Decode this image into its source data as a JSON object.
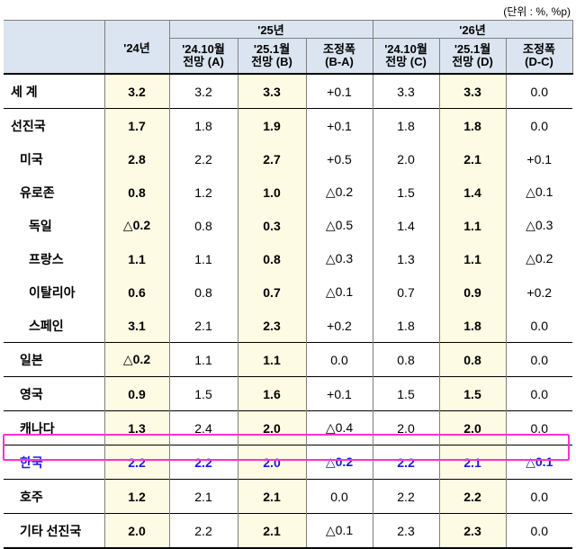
{
  "unit": "(단위 : %, %p)",
  "header": {
    "year24": "'24년",
    "group25": "'25년",
    "group26": "'26년",
    "c25a_1": "'24.10월",
    "c25a_2": "전망 (A)",
    "c25b_1": "'25.1월",
    "c25b_2": "전망 (B)",
    "c25d_1": "조정폭",
    "c25d_2": "(B-A)",
    "c26c_1": "'24.10월",
    "c26c_2": "전망 (C)",
    "c26d_1": "'25.1월",
    "c26d_2": "전망 (D)",
    "c26e_1": "조정폭",
    "c26e_2": "(D-C)"
  },
  "rows": [
    {
      "name": "세  계",
      "y24": "3.2",
      "a": "3.2",
      "b": "3.3",
      "ba": "+0.1",
      "c": "3.3",
      "d": "3.3",
      "dc": "0.0"
    },
    {
      "name": "선진국",
      "y24": "1.7",
      "a": "1.8",
      "b": "1.9",
      "ba": "+0.1",
      "c": "1.8",
      "d": "1.8",
      "dc": "0.0"
    },
    {
      "name": "미국",
      "y24": "2.8",
      "a": "2.2",
      "b": "2.7",
      "ba": "+0.5",
      "c": "2.0",
      "d": "2.1",
      "dc": "+0.1"
    },
    {
      "name": "유로존",
      "y24": "0.8",
      "a": "1.2",
      "b": "1.0",
      "ba": "△0.2",
      "c": "1.5",
      "d": "1.4",
      "dc": "△0.1"
    },
    {
      "name": "독일",
      "y24": "△0.2",
      "a": "0.8",
      "b": "0.3",
      "ba": "△0.5",
      "c": "1.4",
      "d": "1.1",
      "dc": "△0.3"
    },
    {
      "name": "프랑스",
      "y24": "1.1",
      "a": "1.1",
      "b": "0.8",
      "ba": "△0.3",
      "c": "1.3",
      "d": "1.1",
      "dc": "△0.2"
    },
    {
      "name": "이탈리아",
      "y24": "0.6",
      "a": "0.8",
      "b": "0.7",
      "ba": "△0.1",
      "c": "0.7",
      "d": "0.9",
      "dc": "+0.2"
    },
    {
      "name": "스페인",
      "y24": "3.1",
      "a": "2.1",
      "b": "2.3",
      "ba": "+0.2",
      "c": "1.8",
      "d": "1.8",
      "dc": "0.0"
    },
    {
      "name": "일본",
      "y24": "△0.2",
      "a": "1.1",
      "b": "1.1",
      "ba": "0.0",
      "c": "0.8",
      "d": "0.8",
      "dc": "0.0"
    },
    {
      "name": "영국",
      "y24": "0.9",
      "a": "1.5",
      "b": "1.6",
      "ba": "+0.1",
      "c": "1.5",
      "d": "1.5",
      "dc": "0.0"
    },
    {
      "name": "캐나다",
      "y24": "1.3",
      "a": "2.4",
      "b": "2.0",
      "ba": "△0.4",
      "c": "2.0",
      "d": "2.0",
      "dc": "0.0"
    },
    {
      "name": "한국",
      "y24": "2.2",
      "a": "2.2",
      "b": "2.0",
      "ba": "△0.2",
      "c": "2.2",
      "d": "2.1",
      "dc": "△0.1"
    },
    {
      "name": "호주",
      "y24": "1.2",
      "a": "2.1",
      "b": "2.1",
      "ba": "0.0",
      "c": "2.2",
      "d": "2.2",
      "dc": "0.0"
    },
    {
      "name": "기타 선진국",
      "y24": "2.0",
      "a": "2.2",
      "b": "2.1",
      "ba": "△0.1",
      "c": "2.3",
      "d": "2.3",
      "dc": "0.0"
    }
  ],
  "colors": {
    "highlight_border": "#ff33cc",
    "korea_text": "#1a1adf",
    "header_bg": "#dbe5f1",
    "col_highlight_bg": "#fdfbe3"
  }
}
